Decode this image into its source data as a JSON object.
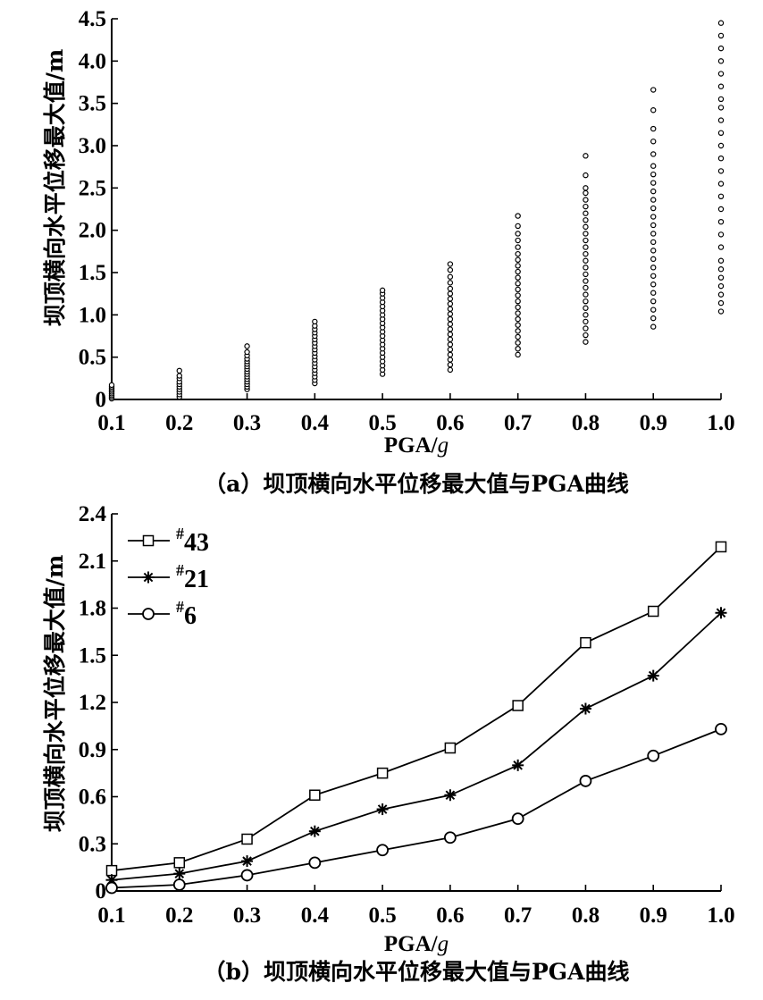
{
  "chart_data": [
    {
      "type": "scatter",
      "ylabel": "坝顶横向水平位移最大值/m",
      "xlabel_main": "PGA/",
      "xlabel_italic": "g",
      "caption": "（a）坝顶横向水平位移最大值与PGA曲线",
      "xlim": [
        0.1,
        1.0
      ],
      "ylim": [
        0,
        4.5
      ],
      "xticks": [
        "0.1",
        "0.2",
        "0.3",
        "0.4",
        "0.5",
        "0.6",
        "0.7",
        "0.8",
        "0.9",
        "1.0"
      ],
      "yticks": [
        "0",
        "0.5",
        "1.0",
        "1.5",
        "2.0",
        "2.5",
        "3.0",
        "3.5",
        "4.0",
        "4.5"
      ],
      "series": [
        {
          "x": 0.1,
          "values": [
            0.01,
            0.03,
            0.05,
            0.07,
            0.09,
            0.11,
            0.13,
            0.15,
            0.17
          ]
        },
        {
          "x": 0.2,
          "values": [
            0.03,
            0.06,
            0.09,
            0.12,
            0.15,
            0.18,
            0.21,
            0.25,
            0.28,
            0.34
          ]
        },
        {
          "x": 0.3,
          "values": [
            0.12,
            0.15,
            0.18,
            0.21,
            0.24,
            0.27,
            0.3,
            0.33,
            0.36,
            0.39,
            0.42,
            0.45,
            0.48,
            0.52,
            0.56,
            0.63
          ]
        },
        {
          "x": 0.4,
          "values": [
            0.19,
            0.23,
            0.27,
            0.31,
            0.35,
            0.39,
            0.43,
            0.47,
            0.51,
            0.55,
            0.59,
            0.63,
            0.67,
            0.71,
            0.75,
            0.79,
            0.83,
            0.87,
            0.92
          ]
        },
        {
          "x": 0.5,
          "values": [
            0.3,
            0.35,
            0.4,
            0.45,
            0.5,
            0.55,
            0.6,
            0.65,
            0.7,
            0.75,
            0.8,
            0.85,
            0.9,
            0.95,
            1.0,
            1.05,
            1.1,
            1.15,
            1.2,
            1.25,
            1.29
          ]
        },
        {
          "x": 0.6,
          "values": [
            0.35,
            0.41,
            0.47,
            0.53,
            0.59,
            0.65,
            0.71,
            0.77,
            0.83,
            0.89,
            0.95,
            1.01,
            1.07,
            1.13,
            1.19,
            1.25,
            1.31,
            1.38,
            1.45,
            1.53,
            1.6
          ]
        },
        {
          "x": 0.7,
          "values": [
            0.53,
            0.6,
            0.67,
            0.74,
            0.81,
            0.88,
            0.95,
            1.02,
            1.09,
            1.16,
            1.23,
            1.3,
            1.37,
            1.44,
            1.51,
            1.58,
            1.65,
            1.72,
            1.8,
            1.88,
            1.96,
            2.05,
            2.17
          ]
        },
        {
          "x": 0.8,
          "values": [
            0.68,
            0.76,
            0.84,
            0.92,
            1.0,
            1.08,
            1.16,
            1.24,
            1.32,
            1.4,
            1.48,
            1.56,
            1.64,
            1.72,
            1.8,
            1.88,
            1.96,
            2.04,
            2.12,
            2.2,
            2.28,
            2.36,
            2.44,
            2.5,
            2.65,
            2.88
          ]
        },
        {
          "x": 0.9,
          "values": [
            0.86,
            0.96,
            1.06,
            1.16,
            1.26,
            1.36,
            1.46,
            1.56,
            1.66,
            1.76,
            1.86,
            1.96,
            2.06,
            2.16,
            2.26,
            2.36,
            2.46,
            2.56,
            2.66,
            2.76,
            2.9,
            3.05,
            3.2,
            3.42,
            3.66
          ]
        },
        {
          "x": 1.0,
          "values": [
            1.04,
            1.14,
            1.24,
            1.34,
            1.44,
            1.54,
            1.64,
            1.8,
            1.95,
            2.1,
            2.25,
            2.4,
            2.55,
            2.7,
            2.85,
            3.0,
            3.15,
            3.3,
            3.45,
            3.55,
            3.7,
            3.85,
            4.0,
            4.15,
            4.3,
            4.45
          ]
        }
      ]
    },
    {
      "type": "line",
      "ylabel": "坝顶横向水平位移最大值/m",
      "xlabel_main": "PGA/",
      "xlabel_italic": "g",
      "caption": "（b）坝顶横向水平位移最大值与PGA曲线",
      "xlim": [
        0.1,
        1.0
      ],
      "ylim": [
        0,
        2.4
      ],
      "legend_position": "top-left",
      "xticks": [
        "0.1",
        "0.2",
        "0.3",
        "0.4",
        "0.5",
        "0.6",
        "0.7",
        "0.8",
        "0.9",
        "1.0"
      ],
      "yticks": [
        "0",
        "0.3",
        "0.6",
        "0.9",
        "1.2",
        "1.5",
        "1.8",
        "2.1",
        "2.4"
      ],
      "x": [
        0.1,
        0.2,
        0.3,
        0.4,
        0.5,
        0.6,
        0.7,
        0.8,
        0.9,
        1.0
      ],
      "series": [
        {
          "sup": "#",
          "num": "43",
          "marker": "square",
          "values": [
            0.13,
            0.18,
            0.33,
            0.61,
            0.75,
            0.91,
            1.18,
            1.58,
            1.78,
            2.19
          ]
        },
        {
          "sup": "#",
          "num": "21",
          "marker": "asterisk",
          "values": [
            0.07,
            0.11,
            0.19,
            0.38,
            0.52,
            0.61,
            0.8,
            1.16,
            1.37,
            1.77
          ]
        },
        {
          "sup": "#",
          "num": "6",
          "marker": "circle",
          "values": [
            0.02,
            0.04,
            0.1,
            0.18,
            0.26,
            0.34,
            0.46,
            0.7,
            0.86,
            1.03
          ]
        }
      ]
    }
  ]
}
